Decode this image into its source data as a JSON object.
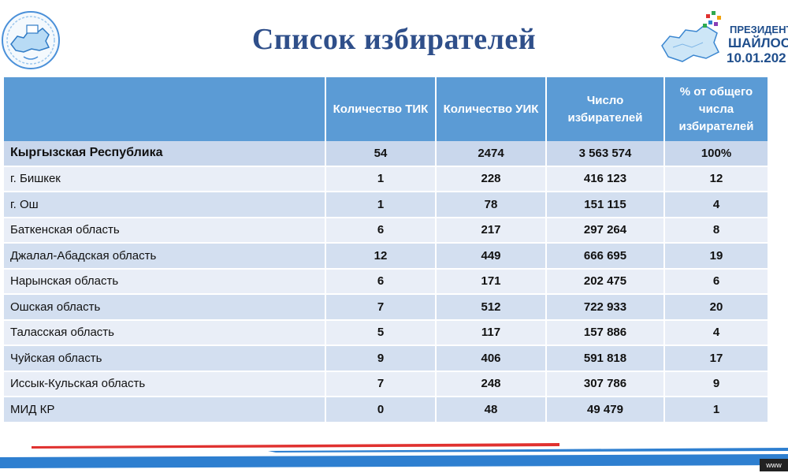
{
  "page": {
    "title": "Список избирателей"
  },
  "badge": {
    "line1": "ПРЕЗИДЕНТТ",
    "line2": "ШАЙЛОО",
    "date": "10.01.202"
  },
  "table": {
    "headers": [
      "",
      "Количество ТИК",
      "Количество УИК",
      "Число избирателей",
      "% от общего числа избирателей"
    ],
    "rows": [
      {
        "name": "Кыргызская Республика",
        "tik": "54",
        "uik": "2474",
        "voters": "3 563 574",
        "pct": "100%"
      },
      {
        "name": "г. Бишкек",
        "tik": "1",
        "uik": "228",
        "voters": "416 123",
        "pct": "12"
      },
      {
        "name": "г. Ош",
        "tik": "1",
        "uik": "78",
        "voters": "151 115",
        "pct": "4"
      },
      {
        "name": "Баткенская область",
        "tik": "6",
        "uik": "217",
        "voters": "297 264",
        "pct": "8"
      },
      {
        "name": "Джалал-Абадская область",
        "tik": "12",
        "uik": "449",
        "voters": "666 695",
        "pct": "19"
      },
      {
        "name": "Нарынская область",
        "tik": "6",
        "uik": "171",
        "voters": "202 475",
        "pct": "6"
      },
      {
        "name": "Ошская область",
        "tik": "7",
        "uik": "512",
        "voters": "722 933",
        "pct": "20"
      },
      {
        "name": "Таласская область",
        "tik": "5",
        "uik": "117",
        "voters": "157 886",
        "pct": "4"
      },
      {
        "name": "Чуйская область",
        "tik": "9",
        "uik": "406",
        "voters": "591 818",
        "pct": "17"
      },
      {
        "name": "Иссык-Кульская область",
        "tik": "7",
        "uik": "248",
        "voters": "307 786",
        "pct": "9"
      },
      {
        "name": "МИД КР",
        "tik": "0",
        "uik": "48",
        "voters": "49 479",
        "pct": "1"
      }
    ]
  },
  "footer": {
    "www": "www"
  },
  "colors": {
    "header_bg": "#5b9bd5",
    "row_light": "#e9eef7",
    "row_dark": "#d3dff0",
    "title": "#2f4f8a",
    "stripe_red": "#e0312f",
    "stripe_blue": "#2e7fd0"
  }
}
